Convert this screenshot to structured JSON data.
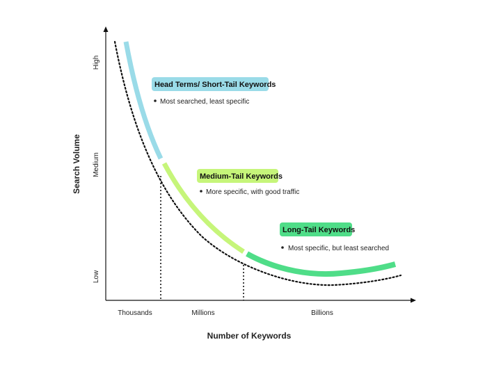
{
  "axes": {
    "x_title": "Number of Keywords",
    "y_title": "Search Volume",
    "x_ticks": [
      "Thousands",
      "Millions",
      "Billions"
    ],
    "y_ticks": [
      "Low",
      "Medium",
      "High"
    ]
  },
  "segments": [
    {
      "title": "Head Terms/ Short-Tail Keywords",
      "bullet": "Most searched, least specific",
      "color": "#9adbe8"
    },
    {
      "title": "Medium-Tail Keywords",
      "bullet": "More specific, with good traffic",
      "color": "#c6f57a"
    },
    {
      "title": "Long-Tail Keywords",
      "bullet": "Most specific, but least searched",
      "color": "#4fdd88"
    }
  ],
  "colors": {
    "axis": "#111111",
    "dotted": "#111111"
  }
}
